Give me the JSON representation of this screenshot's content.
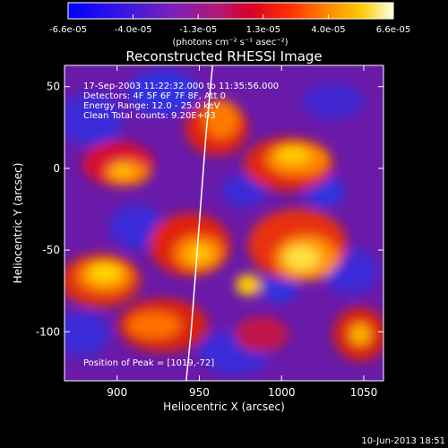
{
  "colorbar": {
    "tick_labels": [
      "-6.6e-05",
      "-4.0e-05",
      "-1.3e-05",
      "1.3e-05",
      "4.0e-05",
      "6.6e-05"
    ],
    "unit_label": "(photons cm⁻² s⁻¹ asec⁻²)",
    "range": [
      -6.6e-05,
      6.6e-05
    ]
  },
  "chart_data": {
    "type": "heatmap",
    "title": "Reconstructed RHESSI Image",
    "xlabel": "Heliocentric X (arcsec)",
    "ylabel": "Heliocentric Y (arcsec)",
    "xlim": [
      868,
      1062
    ],
    "ylim": [
      -130,
      63
    ],
    "x_ticks": [
      900,
      950,
      1000,
      1050
    ],
    "y_ticks": [
      50,
      0,
      -50,
      -100
    ],
    "limb_curve": [
      [
        958,
        63
      ],
      [
        954,
        20
      ],
      [
        951,
        -20
      ],
      [
        948,
        -60
      ],
      [
        945,
        -100
      ],
      [
        942,
        -130
      ]
    ],
    "annotations": [
      "17-Sep-2003 11:22:32.000 to 11:35:56.000",
      "Detectors: 4F 5F 6F 7F 8F, Att 0",
      "Energy Range: 12.0 - 25.0 keV",
      "Clean    Total counts: 9.20E+03"
    ],
    "peak_label": "Position of Peak = [1019,-72]",
    "peak_position": [
      1019,
      -72
    ]
  },
  "footer": {
    "timestamp": "10-Jun-2013 18:51"
  }
}
